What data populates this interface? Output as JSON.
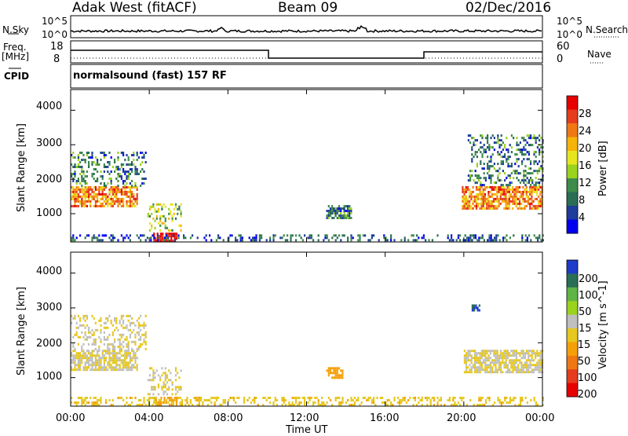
{
  "header": {
    "station": "Adak West (fitACF)",
    "beam": "Beam 09",
    "date": "02/Dec/2016"
  },
  "strips": {
    "nsky_label": "N.Sky",
    "nsky_ticks": [
      "10^5",
      "10^0"
    ],
    "nsearch_label": "N.Search",
    "freq_label_1": "Freq.",
    "freq_label_2": "[MHz]",
    "freq_ticks": [
      "18",
      "8"
    ],
    "nave_ticks": [
      "60",
      "0"
    ],
    "nave_label": "Nave",
    "cpid_label": "CPID",
    "cpid_text": "normalsound (fast) 157 RF"
  },
  "colors": {
    "power_scale": [
      "#0000ee",
      "#1e3c9a",
      "#2a6e55",
      "#3f8c4a",
      "#9bd21e",
      "#e6e61e",
      "#f5b40a",
      "#f07814",
      "#e63c1e",
      "#e60000"
    ],
    "velocity_scale": [
      "#1e3cc8",
      "#2a6e55",
      "#5fb446",
      "#9bd21e",
      "#bfbfbf",
      "#e6c81e",
      "#f5a00a",
      "#f07814",
      "#e63c1e",
      "#e60000"
    ]
  },
  "chart_data": [
    {
      "type": "heatmap",
      "title": "Power",
      "ylabel": "Slant Range [km]",
      "xlabel": "Time UT",
      "x_ticks": [
        "00:00",
        "04:00",
        "08:00",
        "12:00",
        "16:00",
        "20:00",
        "00:00"
      ],
      "y_ticks": [
        "4000",
        "3000",
        "2000",
        "1000"
      ],
      "ylim": [
        180,
        4600
      ],
      "xlim_hours": [
        0,
        24
      ],
      "colorbar": {
        "label": "Power [dB]",
        "ticks": [
          "28",
          "24",
          "20",
          "16",
          "12",
          "8",
          "4"
        ],
        "range": [
          0,
          30
        ]
      },
      "echo_regions": [
        {
          "t0": 0.0,
          "t1": 3.4,
          "r0": 1200,
          "r1": 1800,
          "value": 22
        },
        {
          "t0": 0.0,
          "t1": 3.8,
          "r0": 1800,
          "r1": 2800,
          "value": 8
        },
        {
          "t0": 3.9,
          "t1": 5.6,
          "r0": 500,
          "r1": 1300,
          "value": 14
        },
        {
          "t0": 4.2,
          "t1": 5.4,
          "r0": 200,
          "r1": 450,
          "value": 30
        },
        {
          "t0": 13.0,
          "t1": 14.3,
          "r0": 850,
          "r1": 1250,
          "value": 8
        },
        {
          "t0": 19.9,
          "t1": 24.0,
          "r0": 1150,
          "r1": 1800,
          "value": 22
        },
        {
          "t0": 20.2,
          "t1": 24.0,
          "r0": 1800,
          "r1": 3300,
          "value": 8
        },
        {
          "t0": 0.0,
          "t1": 24.0,
          "r0": 200,
          "r1": 400,
          "value": 6
        }
      ]
    },
    {
      "type": "heatmap",
      "title": "Velocity",
      "ylabel": "Slant Range [km]",
      "xlabel": "Time UT",
      "x_ticks": [
        "00:00",
        "04:00",
        "08:00",
        "12:00",
        "16:00",
        "20:00",
        "00:00"
      ],
      "y_ticks": [
        "4000",
        "3000",
        "2000",
        "1000"
      ],
      "ylim": [
        180,
        4600
      ],
      "xlim_hours": [
        0,
        24
      ],
      "colorbar": {
        "label": "Velocity [m s^-1]",
        "ticks": [
          "200",
          "100",
          "50",
          "15",
          "-15",
          "-50",
          "-100",
          "-200"
        ],
        "range": [
          -250,
          250
        ]
      },
      "echo_regions": [
        {
          "t0": 0.0,
          "t1": 3.4,
          "r0": 1200,
          "r1": 1800,
          "value": 0
        },
        {
          "t0": 0.0,
          "t1": 3.8,
          "r0": 1800,
          "r1": 2800,
          "value": 0
        },
        {
          "t0": 3.9,
          "t1": 5.6,
          "r0": 550,
          "r1": 1300,
          "value": 0
        },
        {
          "t0": 4.2,
          "t1": 5.4,
          "r0": 200,
          "r1": 450,
          "value": -60
        },
        {
          "t0": 13.0,
          "t1": 13.8,
          "r0": 1000,
          "r1": 1300,
          "value": -80
        },
        {
          "t0": 20.4,
          "t1": 20.8,
          "r0": 2950,
          "r1": 3100,
          "value": 200
        },
        {
          "t0": 20.0,
          "t1": 24.0,
          "r0": 1150,
          "r1": 1800,
          "value": 0
        },
        {
          "t0": 0.0,
          "t1": 24.0,
          "r0": 200,
          "r1": 450,
          "value": -40
        }
      ]
    }
  ]
}
